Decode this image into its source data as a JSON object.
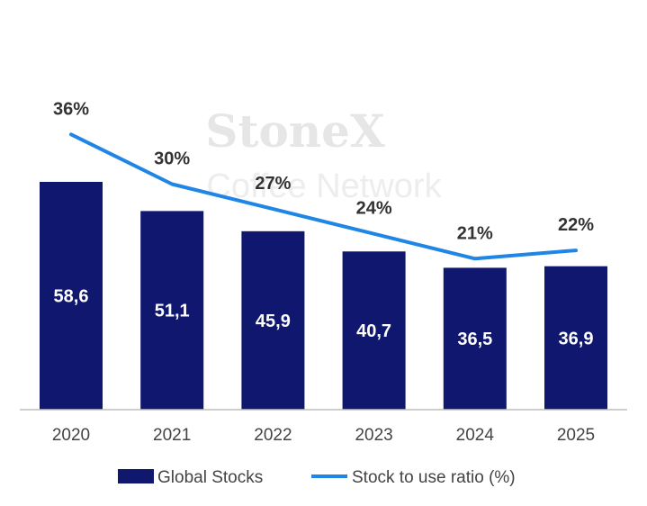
{
  "watermark": {
    "brand": "StoneX",
    "subtitle": "Coffee Network"
  },
  "colors": {
    "bar": "#0f176e",
    "line": "#1f86e6",
    "axis": "#bfbfbf"
  },
  "chart_data": {
    "type": "bar",
    "categories": [
      "2020",
      "2021",
      "2022",
      "2023",
      "2024",
      "2025"
    ],
    "series": [
      {
        "name": "Global Stocks",
        "type": "bar",
        "values": [
          58.6,
          51.1,
          45.9,
          40.7,
          36.5,
          36.9
        ],
        "labels": [
          "58,6",
          "51,1",
          "45,9",
          "40,7",
          "36,5",
          "36,9"
        ]
      },
      {
        "name": "Stock to use ratio (%)",
        "type": "line",
        "values": [
          36,
          30,
          27,
          24,
          21,
          22
        ],
        "labels": [
          "36%",
          "30%",
          "27%",
          "24%",
          "21%",
          "22%"
        ]
      }
    ],
    "bar_axis_range": [
      0,
      60
    ],
    "line_axis_range": [
      0,
      45
    ],
    "grid": false,
    "legend": "bottom"
  }
}
